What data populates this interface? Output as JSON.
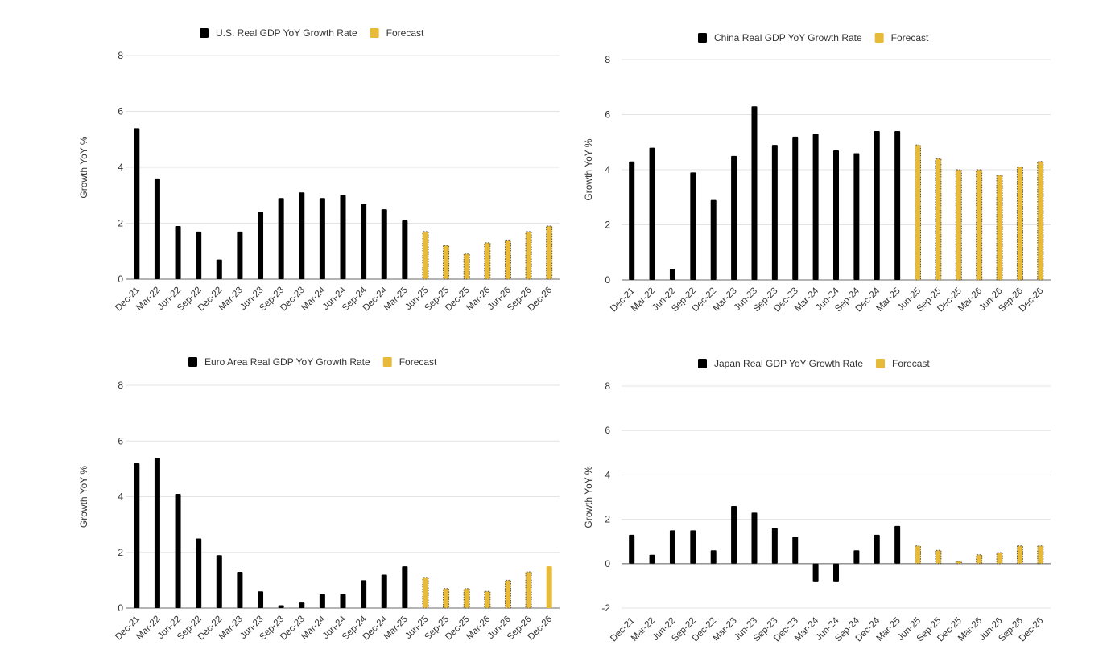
{
  "colors": {
    "actual": "#000000",
    "forecast": "#E8BA3A",
    "forecast_outline": "#555555",
    "grid": "#e3e3e3",
    "baseline": "#888888"
  },
  "chart_data": [
    {
      "type": "bar",
      "legend": {
        "placement": "top",
        "actual_label": "U.S. Real GDP YoY Growth Rate",
        "forecast_label": "Forecast"
      },
      "ylabel": "Growth YoY %",
      "ylim": [
        0,
        8
      ],
      "yticks": [
        "0",
        "2",
        "4",
        "6",
        "8"
      ],
      "grid": true,
      "categories": [
        "Dec-21",
        "Mar-22",
        "Jun-22",
        "Sep-22",
        "Dec-22",
        "Mar-23",
        "Jun-23",
        "Sep-23",
        "Dec-23",
        "Mar-24",
        "Jun-24",
        "Sep-24",
        "Dec-24",
        "Mar-25",
        "Jun-25",
        "Sep-25",
        "Dec-25",
        "Mar-26",
        "Jun-26",
        "Sep-26",
        "Dec-26"
      ],
      "series": [
        {
          "name": "U.S. Real GDP YoY Growth Rate",
          "values": [
            5.4,
            3.6,
            1.9,
            1.7,
            0.7,
            1.7,
            2.4,
            2.9,
            3.1,
            2.9,
            3.0,
            2.7,
            2.5,
            2.1,
            null,
            null,
            null,
            null,
            null,
            null,
            null
          ]
        },
        {
          "name": "Forecast",
          "values": [
            null,
            null,
            null,
            null,
            null,
            null,
            null,
            null,
            null,
            null,
            null,
            null,
            null,
            null,
            1.7,
            1.2,
            0.9,
            1.3,
            1.4,
            1.7,
            1.9
          ]
        }
      ]
    },
    {
      "type": "bar",
      "legend": {
        "placement": "top",
        "actual_label": "China Real GDP YoY Growth Rate",
        "forecast_label": "Forecast"
      },
      "ylabel": "Growth YoY %",
      "ylim": [
        0,
        8
      ],
      "yticks": [
        "0",
        "2",
        "4",
        "6",
        "8"
      ],
      "grid": true,
      "categories": [
        "Dec-21",
        "Mar-22",
        "Jun-22",
        "Sep-22",
        "Dec-22",
        "Mar-23",
        "Jun-23",
        "Sep-23",
        "Dec-23",
        "Mar-24",
        "Jun-24",
        "Sep-24",
        "Dec-24",
        "Mar-25",
        "Jun-25",
        "Sep-25",
        "Dec-25",
        "Mar-26",
        "Jun-26",
        "Sep-26",
        "Dec-26"
      ],
      "series": [
        {
          "name": "China Real GDP YoY Growth Rate",
          "values": [
            4.3,
            4.8,
            0.4,
            3.9,
            2.9,
            4.5,
            6.3,
            4.9,
            5.2,
            5.3,
            4.7,
            4.6,
            5.4,
            5.4,
            null,
            null,
            null,
            null,
            null,
            null,
            null
          ]
        },
        {
          "name": "Forecast",
          "values": [
            null,
            null,
            null,
            null,
            null,
            null,
            null,
            null,
            null,
            null,
            null,
            null,
            null,
            null,
            4.9,
            4.4,
            4.0,
            4.0,
            3.8,
            4.1,
            4.3
          ]
        }
      ]
    },
    {
      "type": "bar",
      "legend": {
        "placement": "top",
        "actual_label": "Euro Area Real GDP YoY Growth Rate",
        "forecast_label": "Forecast"
      },
      "ylabel": "Growth YoY %",
      "ylim": [
        0,
        8
      ],
      "yticks": [
        "0",
        "2",
        "4",
        "6",
        "8"
      ],
      "grid": true,
      "categories": [
        "Dec-21",
        "Mar-22",
        "Jun-22",
        "Sep-22",
        "Dec-22",
        "Mar-23",
        "Jun-23",
        "Sep-23",
        "Dec-23",
        "Mar-24",
        "Jun-24",
        "Sep-24",
        "Dec-24",
        "Mar-25",
        "Jun-25",
        "Sep-25",
        "Dec-25",
        "Mar-26",
        "Jun-26",
        "Sep-26",
        "Dec-26"
      ],
      "series": [
        {
          "name": "Euro Area Real GDP YoY Growth Rate",
          "values": [
            5.2,
            5.4,
            4.1,
            2.5,
            1.9,
            1.3,
            0.6,
            0.1,
            0.2,
            0.5,
            0.5,
            1.0,
            1.2,
            1.5,
            null,
            null,
            null,
            null,
            null,
            null,
            null
          ]
        },
        {
          "name": "Forecast",
          "values": [
            null,
            null,
            null,
            null,
            null,
            null,
            null,
            null,
            null,
            null,
            null,
            null,
            null,
            null,
            1.1,
            0.7,
            0.7,
            0.6,
            1.0,
            1.3,
            1.5
          ]
        }
      ]
    },
    {
      "type": "bar",
      "legend": {
        "placement": "top",
        "actual_label": "Japan Real GDP YoY Growth Rate",
        "forecast_label": "Forecast"
      },
      "ylabel": "Growth YoY %",
      "ylim": [
        -2,
        8
      ],
      "yticks": [
        "-2",
        "0",
        "2",
        "4",
        "6",
        "8"
      ],
      "grid": true,
      "categories": [
        "Dec-21",
        "Mar-22",
        "Jun-22",
        "Sep-22",
        "Dec-22",
        "Mar-23",
        "Jun-23",
        "Sep-23",
        "Dec-23",
        "Mar-24",
        "Jun-24",
        "Sep-24",
        "Dec-24",
        "Mar-25",
        "Jun-25",
        "Sep-25",
        "Dec-25",
        "Mar-26",
        "Jun-26",
        "Sep-26",
        "Dec-26"
      ],
      "series": [
        {
          "name": "Japan Real GDP YoY Growth Rate",
          "values": [
            1.3,
            0.4,
            1.5,
            1.5,
            0.6,
            2.6,
            2.3,
            1.6,
            1.2,
            -0.8,
            -0.8,
            0.6,
            1.3,
            1.7,
            null,
            null,
            null,
            null,
            null,
            null,
            null
          ]
        },
        {
          "name": "Forecast",
          "values": [
            null,
            null,
            null,
            null,
            null,
            null,
            null,
            null,
            null,
            null,
            null,
            null,
            null,
            null,
            0.8,
            0.6,
            0.1,
            0.4,
            0.5,
            0.8,
            0.8
          ]
        }
      ]
    }
  ]
}
